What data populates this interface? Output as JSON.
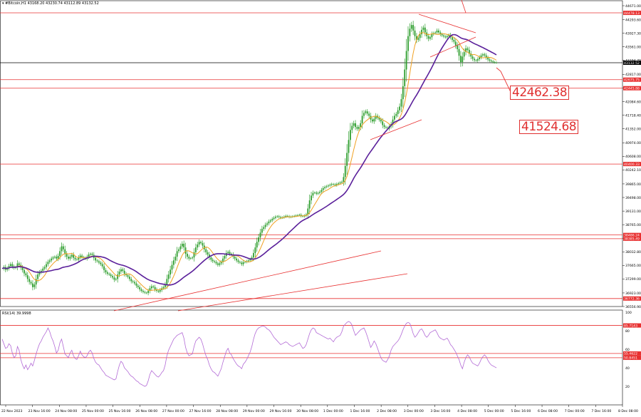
{
  "header": {
    "symbol": "#Bitcoin,H1",
    "ohlc": "43168.20 43230.74 43112.89 43132.52"
  },
  "rsi_header": "RSI(14) 39.9998",
  "annotations": {
    "upper": "42462.38",
    "lower": "41524.68"
  },
  "colors": {
    "candle": "#2e9e2e",
    "ma_fast": "#f0a020",
    "ma_slow": "#5a1f9a",
    "levels": "#e83030",
    "rsi": "#b36bd6",
    "current_price": "#000000"
  },
  "chart_data": [
    {
      "type": "candlestick",
      "title": "#Bitcoin,H1",
      "ylim": [
        36556.9,
        44671.0
      ],
      "y_ticks": [
        "44671.00",
        "44293.60",
        "43927.30",
        "43561.00",
        "43194.70",
        "42817.00",
        "42450.00",
        "42084.60",
        "41718.40",
        "41352.00",
        "40974.00",
        "40608.00",
        "40242.10",
        "39865.00",
        "39498.00",
        "39131.00",
        "38765.00",
        "38399.00",
        "38032.80",
        "37665.00",
        "37299.00",
        "36923.00",
        "36556.90"
      ],
      "x_ticks": [
        "22 Nov 2023",
        "23 Nov 16:00",
        "24 Nov 08:00",
        "25 Nov 00:00",
        "25 Nov 16:00",
        "26 Nov 08:00",
        "27 Nov 00:00",
        "27 Nov 16:00",
        "28 Nov 08:00",
        "29 Nov 00:00",
        "29 Nov 16:00",
        "30 Nov 08:00",
        "1 Dec 00:00",
        "1 Dec 16:00",
        "2 Dec 08:00",
        "3 Dec 00:00",
        "3 Dec 16:00",
        "4 Dec 08:00",
        "5 Dec 00:00",
        "5 Dec 16:00",
        "6 Dec 08:00",
        "7 Dec 00:00",
        "7 Dec 16:00",
        "8 Dec 08:00"
      ],
      "horizontal_levels": [
        {
          "label": "44478.13",
          "value": 44478.13
        },
        {
          "label": "42675.75",
          "value": 42675.75
        },
        {
          "label": "42445.88",
          "value": 42445.88
        },
        {
          "label": "40400.33",
          "value": 40400.33
        },
        {
          "label": "38486.24",
          "value": 38486.24
        },
        {
          "label": "38385.49",
          "value": 38385.49
        },
        {
          "label": "36772.36",
          "value": 36772.36
        }
      ],
      "current_price": {
        "label": "43132.52",
        "value": 43132.52
      },
      "series": [
        {
          "name": "price",
          "values": [
            37580,
            37620,
            37550,
            37590,
            37650,
            37700,
            37640,
            37600,
            37620,
            37720,
            37680,
            37610,
            37540,
            37450,
            37400,
            37300,
            37220,
            37180,
            37080,
            37150,
            37300,
            37420,
            37480,
            37520,
            37580,
            37620,
            37700,
            37760,
            37800,
            37850,
            37880,
            37900,
            37850,
            37920,
            38050,
            38180,
            38100,
            37980,
            37900,
            37850,
            37900,
            37950,
            37870,
            37830,
            37820,
            37880,
            37930,
            37890,
            37870,
            37850,
            37900,
            37960,
            37980,
            37950,
            37870,
            37800,
            37780,
            37740,
            37700,
            37640,
            37540,
            37480,
            37440,
            37420,
            37380,
            37340,
            37280,
            37300,
            37420,
            37500,
            37560,
            37520,
            37440,
            37400,
            37360,
            37300,
            37240,
            37220,
            37180,
            37120,
            37080,
            37020,
            36980,
            36950,
            36930,
            36920,
            36980,
            37050,
            37100,
            37080,
            37020,
            36980,
            36960,
            37000,
            37050,
            37080,
            37150,
            37300,
            37420,
            37550,
            37680,
            37800,
            37900,
            38050,
            38100,
            38180,
            38250,
            38150,
            37980,
            37900,
            37850,
            37860,
            37880,
            38020,
            38150,
            38230,
            38300,
            38270,
            38200,
            38100,
            38020,
            37960,
            37880,
            37820,
            37780,
            37760,
            37720,
            37680,
            37720,
            37760,
            37850,
            37920,
            38000,
            38030,
            37980,
            37960,
            37900,
            37850,
            37800,
            37760,
            37740,
            37700,
            37750,
            37760,
            37780,
            37800,
            37830,
            37880,
            38000,
            38150,
            38300,
            38420,
            38550,
            38650,
            38700,
            38760,
            38800,
            38850,
            38880,
            38920,
            38950,
            38980,
            38990,
            38970,
            38950,
            38960,
            38980,
            39000,
            38990,
            38970,
            38980,
            38990,
            39000,
            39010,
            39020,
            39030,
            39000,
            38990,
            39010,
            39040,
            39200,
            39420,
            39550,
            39620,
            39630,
            39600,
            39620,
            39650,
            39700,
            39750,
            39780,
            39800,
            39820,
            39840,
            39860,
            39850,
            39830,
            39860,
            39880,
            39900,
            39920,
            40050,
            40350,
            40700,
            41050,
            41320,
            41430,
            41500,
            41400,
            41350,
            41400,
            41500,
            41700,
            41780,
            41820,
            41760,
            41700,
            41600,
            41550,
            41620,
            41700,
            41650,
            41600,
            41550,
            41450,
            41400,
            41380,
            41360,
            41420,
            41480,
            41600,
            41700,
            41750,
            41850,
            41950,
            42150,
            42500,
            42950,
            43450,
            43850,
            44050,
            44150,
            44000,
            43850,
            43750,
            43800,
            43900,
            44020,
            44080,
            43950,
            43850,
            43780,
            43820,
            43900,
            43930,
            43950,
            44000,
            43950,
            43900,
            43870,
            43840,
            43820,
            43850,
            43880,
            43820,
            43750,
            43700,
            43600,
            43500,
            43320,
            43150,
            43300,
            43420,
            43520,
            43480,
            43380,
            43300,
            43240,
            43200,
            43190,
            43230,
            43280,
            43330,
            43360,
            43330,
            43270,
            43220,
            43190,
            43170,
            43150,
            43140,
            43132.52
          ]
        },
        {
          "name": "ma_fast",
          "values": []
        },
        {
          "name": "ma_slow",
          "values": []
        }
      ]
    },
    {
      "type": "line",
      "title": "RSI(14) 39.9998",
      "ylim": [
        0,
        100
      ],
      "y_ticks": [
        "100",
        "80",
        "60",
        "40",
        "20"
      ],
      "levels": [
        {
          "label": "85.7143",
          "value": 85.7143
        },
        {
          "label": "55.4622",
          "value": 55.4622
        },
        {
          "label": "50.8451",
          "value": 50.8451
        }
      ],
      "series": [
        {
          "name": "RSI(14)",
          "values": [
            71,
            66,
            61,
            62,
            66,
            64,
            56,
            51,
            53,
            63,
            59,
            49,
            43,
            39,
            43,
            38,
            41,
            45,
            42,
            48,
            55,
            61,
            66,
            69,
            73,
            76,
            79,
            83,
            79,
            73,
            69,
            63,
            56,
            59,
            67,
            71,
            63,
            55,
            53,
            51,
            56,
            59,
            53,
            50,
            49,
            53,
            58,
            54,
            52,
            51,
            53,
            57,
            59,
            56,
            50,
            46,
            44,
            43,
            40,
            37,
            35,
            32,
            31,
            30,
            29,
            28,
            27,
            28,
            36,
            43,
            47,
            45,
            40,
            38,
            36,
            33,
            31,
            30,
            28,
            26,
            25,
            23,
            22,
            21,
            20,
            21,
            26,
            33,
            37,
            35,
            33,
            31,
            30,
            32,
            35,
            37,
            43,
            53,
            59,
            63,
            67,
            71,
            73,
            75,
            76,
            77,
            78,
            72,
            62,
            56,
            53,
            54,
            55,
            63,
            69,
            71,
            73,
            71,
            66,
            59,
            53,
            49,
            43,
            39,
            36,
            35,
            33,
            31,
            35,
            39,
            46,
            52,
            58,
            61,
            56,
            54,
            50,
            47,
            44,
            42,
            41,
            39,
            44,
            46,
            49,
            53,
            57,
            63,
            71,
            77,
            81,
            83,
            84,
            85,
            85,
            84,
            82,
            81,
            79,
            76,
            73,
            71,
            69,
            67,
            65,
            66,
            67,
            68,
            67,
            65,
            64,
            63,
            64,
            65,
            66,
            67,
            64,
            61,
            62,
            65,
            71,
            77,
            81,
            83,
            82,
            78,
            77,
            76,
            75,
            74,
            73,
            72,
            71,
            72,
            70,
            68,
            71,
            73,
            74,
            75,
            79,
            85,
            87,
            89,
            90,
            89,
            86,
            80,
            75,
            77,
            79,
            81,
            82,
            83,
            79,
            74,
            68,
            62,
            65,
            69,
            66,
            61,
            56,
            51,
            48,
            47,
            46,
            49,
            53,
            59,
            63,
            65,
            67,
            69,
            72,
            76,
            81,
            85,
            88,
            89,
            88,
            83,
            77,
            73,
            75,
            78,
            81,
            82,
            79,
            75,
            73,
            75,
            78,
            79,
            80,
            81,
            78,
            74,
            72,
            71,
            70,
            71,
            72,
            69,
            65,
            63,
            60,
            57,
            53,
            49,
            43,
            39,
            46,
            51,
            54,
            52,
            48,
            45,
            44,
            43,
            42,
            45,
            49,
            52,
            54,
            52,
            48,
            45,
            43,
            42,
            41,
            40
          ]
        }
      ]
    }
  ]
}
